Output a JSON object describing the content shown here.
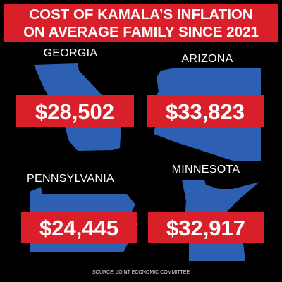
{
  "header": {
    "title_line_1": "COST OF KAMALA’S INFLATION",
    "title_line_2": "ON AVERAGE FAMILY SINCE 2021"
  },
  "states": [
    {
      "name": "GEORGIA",
      "value": "$28,502"
    },
    {
      "name": "ARIZONA",
      "value": "$33,823"
    },
    {
      "name": "PENNSYLVANIA",
      "value": "$24,445"
    },
    {
      "name": "MINNESOTA",
      "value": "$32,917"
    }
  ],
  "footer": {
    "source": "SOURCE: JOINT ECONOMIC COMMITTEE"
  }
}
